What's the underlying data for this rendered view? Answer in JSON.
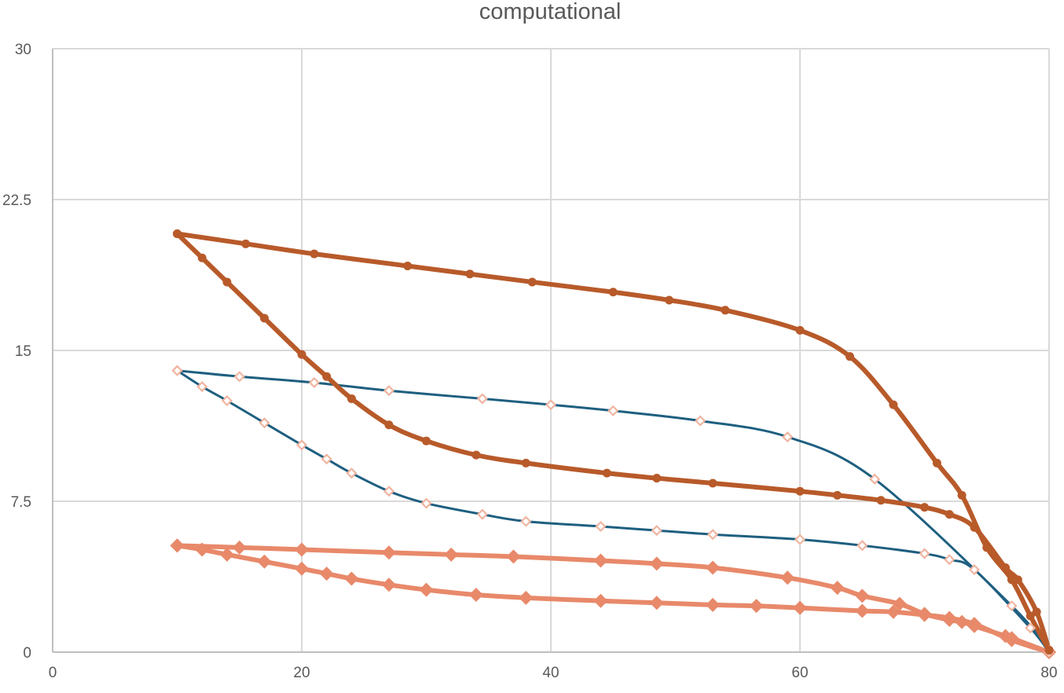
{
  "chart_data": {
    "type": "line",
    "title": "computational",
    "xlabel": "",
    "ylabel": "",
    "xlim": [
      0,
      80
    ],
    "ylim": [
      0,
      30
    ],
    "x_ticks": [
      "0",
      "20",
      "40",
      "60",
      "80"
    ],
    "y_ticks": [
      "0",
      "7.5",
      "15",
      "22.5",
      "30"
    ],
    "grid": true,
    "legend": "none",
    "series": [
      {
        "style": "thick-dark-orange-circle",
        "color": "#b85a2a",
        "points": [
          [
            10,
            20.8
          ],
          [
            15.5,
            20.3
          ],
          [
            21,
            19.8
          ],
          [
            28.5,
            19.2
          ],
          [
            33.5,
            18.8
          ],
          [
            38.5,
            18.4
          ],
          [
            45,
            17.9
          ],
          [
            49.5,
            17.5
          ],
          [
            54,
            17.0
          ],
          [
            60,
            16.0
          ],
          [
            64,
            14.7
          ],
          [
            67.5,
            12.3
          ],
          [
            71,
            9.4
          ],
          [
            73,
            7.8
          ],
          [
            75,
            5.2
          ],
          [
            77,
            3.6
          ],
          [
            78.5,
            1.8
          ],
          [
            80,
            0.1
          ]
        ]
      },
      {
        "style": "thick-dark-orange-circle",
        "color": "#b85a2a",
        "points": [
          [
            10,
            20.8
          ],
          [
            12,
            19.6
          ],
          [
            14,
            18.4
          ],
          [
            17,
            16.6
          ],
          [
            20,
            14.8
          ],
          [
            22,
            13.7
          ],
          [
            24,
            12.6
          ],
          [
            27,
            11.3
          ],
          [
            30,
            10.5
          ],
          [
            34,
            9.8
          ],
          [
            38,
            9.4
          ],
          [
            44.5,
            8.9
          ],
          [
            48.5,
            8.65
          ],
          [
            53,
            8.4
          ],
          [
            60,
            8.0
          ],
          [
            63,
            7.8
          ],
          [
            66.5,
            7.55
          ],
          [
            70,
            7.2
          ],
          [
            72,
            6.85
          ],
          [
            74,
            6.2
          ],
          [
            76.5,
            4.2
          ],
          [
            77.5,
            3.6
          ],
          [
            79,
            2.0
          ],
          [
            80,
            0.1
          ]
        ]
      },
      {
        "style": "thin-blue-hollow-diamond",
        "color": "#1e5f80",
        "marker_color": "#f0b4a0",
        "points": [
          [
            10,
            14.0
          ],
          [
            15,
            13.7
          ],
          [
            21,
            13.4
          ],
          [
            27,
            13.0
          ],
          [
            34.5,
            12.6
          ],
          [
            40,
            12.3
          ],
          [
            45,
            12.0
          ],
          [
            52,
            11.5
          ],
          [
            59,
            10.7
          ],
          [
            66,
            8.6
          ],
          [
            77,
            2.3
          ],
          [
            80,
            0.0
          ]
        ]
      },
      {
        "style": "thin-blue-hollow-diamond",
        "color": "#1e5f80",
        "marker_color": "#f0b4a0",
        "points": [
          [
            10,
            14.0
          ],
          [
            12,
            13.2
          ],
          [
            14,
            12.5
          ],
          [
            17,
            11.4
          ],
          [
            20,
            10.3
          ],
          [
            22,
            9.6
          ],
          [
            24,
            8.9
          ],
          [
            27,
            8.0
          ],
          [
            30,
            7.4
          ],
          [
            34.5,
            6.85
          ],
          [
            38,
            6.5
          ],
          [
            44,
            6.25
          ],
          [
            48.5,
            6.05
          ],
          [
            53,
            5.85
          ],
          [
            60,
            5.6
          ],
          [
            65,
            5.3
          ],
          [
            70,
            4.9
          ],
          [
            72,
            4.6
          ],
          [
            74,
            4.1
          ],
          [
            78.5,
            1.2
          ],
          [
            80,
            0.0
          ]
        ]
      },
      {
        "style": "thick-light-orange-diamond",
        "color": "#e8896a",
        "points": [
          [
            10,
            5.3
          ],
          [
            15,
            5.2
          ],
          [
            20,
            5.1
          ],
          [
            27,
            4.95
          ],
          [
            32,
            4.85
          ],
          [
            37,
            4.75
          ],
          [
            44,
            4.55
          ],
          [
            48.5,
            4.4
          ],
          [
            53,
            4.2
          ],
          [
            59,
            3.7
          ],
          [
            63,
            3.2
          ],
          [
            65,
            2.8
          ],
          [
            68,
            2.4
          ],
          [
            70,
            1.9
          ],
          [
            72,
            1.6
          ],
          [
            73,
            1.5
          ],
          [
            74,
            1.3
          ],
          [
            76.5,
            0.8
          ],
          [
            77,
            0.7
          ],
          [
            80,
            0.0
          ]
        ]
      },
      {
        "style": "thick-light-orange-diamond",
        "color": "#e8896a",
        "points": [
          [
            10,
            5.3
          ],
          [
            12,
            5.1
          ],
          [
            14,
            4.85
          ],
          [
            17,
            4.5
          ],
          [
            20,
            4.15
          ],
          [
            22,
            3.9
          ],
          [
            24,
            3.65
          ],
          [
            27,
            3.35
          ],
          [
            30,
            3.1
          ],
          [
            34,
            2.85
          ],
          [
            38,
            2.7
          ],
          [
            44,
            2.55
          ],
          [
            48.5,
            2.45
          ],
          [
            53,
            2.35
          ],
          [
            56.5,
            2.3
          ],
          [
            60,
            2.2
          ],
          [
            65,
            2.05
          ],
          [
            67.5,
            2.0
          ],
          [
            70,
            1.85
          ],
          [
            72,
            1.7
          ],
          [
            74,
            1.4
          ],
          [
            77,
            0.6
          ],
          [
            80,
            0.0
          ]
        ]
      }
    ]
  }
}
